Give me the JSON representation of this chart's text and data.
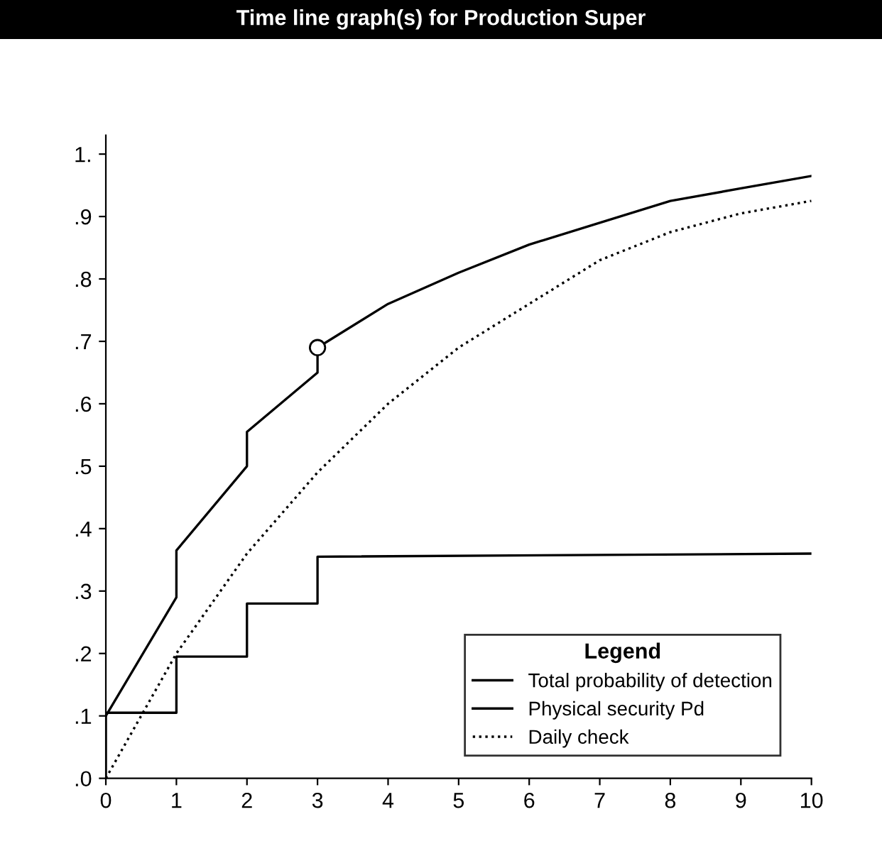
{
  "chart_data": {
    "type": "line",
    "title": "Time line graph(s) for Production Super",
    "xlim": [
      0,
      10
    ],
    "ylim": [
      0,
      1.03
    ],
    "xticks": [
      0,
      1,
      2,
      3,
      4,
      5,
      6,
      7,
      8,
      9,
      10
    ],
    "yticks": [
      {
        "value": 0,
        "label": ".0"
      },
      {
        "value": 0.1,
        "label": ".1"
      },
      {
        "value": 0.2,
        "label": ".2"
      },
      {
        "value": 0.3,
        "label": ".3"
      },
      {
        "value": 0.4,
        "label": ".4"
      },
      {
        "value": 0.5,
        "label": ".5"
      },
      {
        "value": 0.6,
        "label": ".6"
      },
      {
        "value": 0.7,
        "label": ".7"
      },
      {
        "value": 0.8,
        "label": ".8"
      },
      {
        "value": 0.9,
        "label": ".9"
      },
      {
        "value": 1.0,
        "label": "1."
      }
    ],
    "grid": false,
    "legend": "bottom right",
    "legend_title": "Legend",
    "series": [
      {
        "name": "Total probability of detection",
        "color": "#000000",
        "line_style": "solid",
        "marker": "none",
        "x": [
          0,
          1,
          1,
          2,
          2,
          3,
          3,
          4,
          5,
          6,
          7,
          8,
          9,
          10
        ],
        "values": [
          0.1,
          0.29,
          0.365,
          0.5,
          0.555,
          0.65,
          0.69,
          0.76,
          0.81,
          0.855,
          0.89,
          0.925,
          0.945,
          0.965
        ]
      },
      {
        "name": "Physical security Pd",
        "color": "#000000",
        "line_style": "solid",
        "marker": "none",
        "x": [
          0,
          0,
          1,
          1,
          2,
          2,
          3,
          3,
          10
        ],
        "values": [
          0,
          0.105,
          0.105,
          0.195,
          0.195,
          0.28,
          0.28,
          0.355,
          0.36
        ]
      },
      {
        "name": "Daily check",
        "color": "#000000",
        "line_style": "dotted",
        "marker": "none",
        "x": [
          0,
          1,
          2,
          3,
          4,
          5,
          6,
          7,
          8,
          9,
          10
        ],
        "values": [
          0,
          0.2,
          0.36,
          0.49,
          0.6,
          0.69,
          0.76,
          0.83,
          0.875,
          0.905,
          0.925
        ]
      },
      {
        "type": "scatter",
        "color": "#000000",
        "marker": "circle",
        "x": [
          3
        ],
        "values": [
          0.69
        ]
      }
    ]
  }
}
